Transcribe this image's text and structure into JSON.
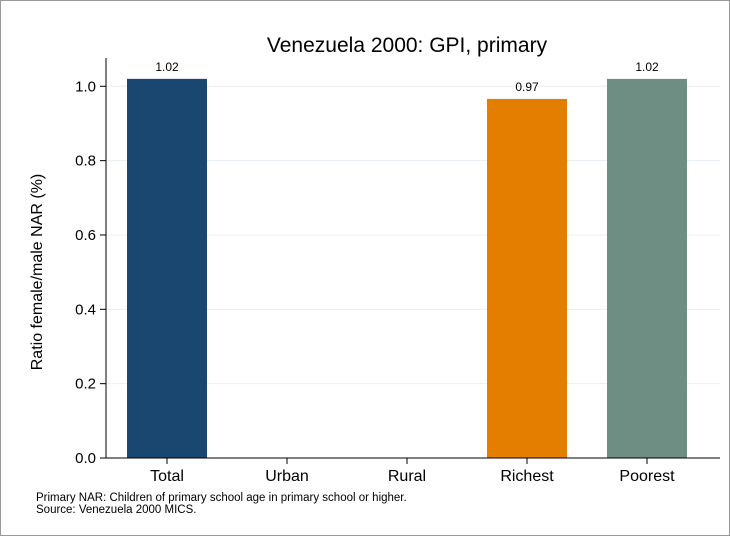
{
  "chart_data": {
    "type": "bar",
    "title": "Venezuela 2000: GPI, primary",
    "xlabel": "",
    "ylabel": "Ratio female/male NAR (%)",
    "categories": [
      "Total",
      "Urban",
      "Rural",
      "Richest",
      "Poorest"
    ],
    "values": [
      1.02,
      null,
      null,
      0.966,
      1.02
    ],
    "data_labels": [
      "1.02",
      "",
      "",
      "0.97",
      "1.02"
    ],
    "colors": [
      "#1a476f",
      "#1a476f",
      "#1a476f",
      "#e37e00",
      "#6e8e84"
    ],
    "ylim": [
      0,
      1.06
    ],
    "yticks": [
      0,
      0.2,
      0.4,
      0.6,
      0.8,
      1.0
    ],
    "ytick_labels": [
      "0.0",
      "0.2",
      "0.4",
      "0.6",
      "0.8",
      "1.0"
    ],
    "grid": true,
    "legend": "none"
  },
  "notes": {
    "line1": "Primary NAR: Children of primary school age in primary school or higher.",
    "line2": "Source: Venezuela 2000 MICS."
  }
}
